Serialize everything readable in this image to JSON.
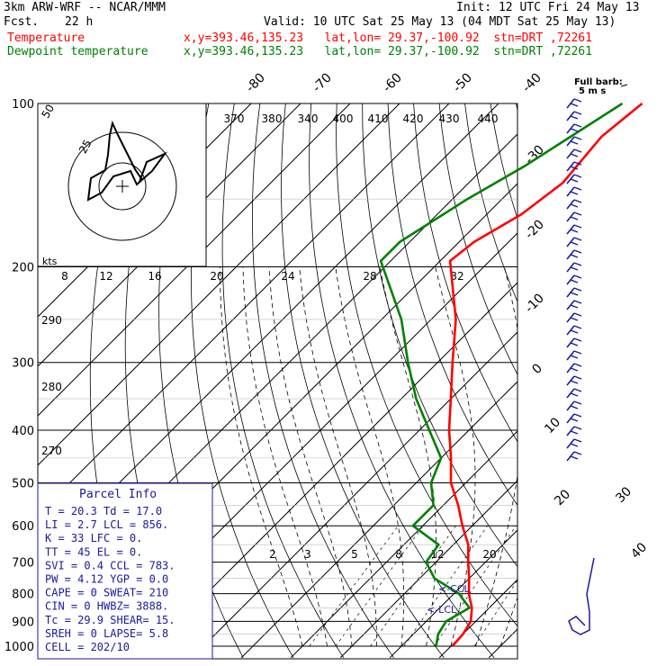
{
  "header": {
    "model": "3km ARW-WRF -- NCAR/MMM",
    "init": "Init: 12 UTC Fri 24 May 13",
    "fcst_label": "Fcst.",
    "fcst_value": "22 h",
    "valid": "Valid: 10 UTC Sat 25 May 13 (04 MDT Sat 25 May 13)",
    "temp_label": "Temperature",
    "temp_loc": "x,y=393.46,135.23   lat,lon= 29.37,-100.92  stn=DRT ,72261",
    "dew_label": "Dewpoint temperature",
    "dew_loc": "x,y=393.46,135.23   lat,lon= 29.37,-100.92  stn=DRT ,72261"
  },
  "colors": {
    "temperature": "#ff0000",
    "dewpoint": "#008000",
    "wind_barbs": "#1a1aa0",
    "hodograph": "#000000"
  },
  "chart_data": {
    "type": "skew-t log-p sounding",
    "y_axis": {
      "scale": "log",
      "ticks": [
        "100",
        "200",
        "300",
        "400",
        "500",
        "600",
        "700",
        "800",
        "900",
        "1000"
      ]
    },
    "isotherm_labels": [
      "-80",
      "-70",
      "-60",
      "-50",
      "-40",
      "-30",
      "-20",
      "-10",
      "0",
      "10",
      "20",
      "30",
      "40"
    ],
    "theta_labels": [
      "370",
      "380",
      "340",
      "400",
      "410",
      "420",
      "430",
      "440"
    ],
    "theta_left_labels": [
      "290",
      "280",
      "270"
    ],
    "mixing_ratio_labels": [
      "2",
      "3",
      "5",
      "8",
      "12",
      "20"
    ],
    "hodo_scale_labels": [
      "8",
      "12",
      "16",
      "20",
      "24",
      "28",
      "32"
    ],
    "hodo_ring_label": "25",
    "hodo_corner_label": "50",
    "kts_label": "kts",
    "full_barb": "Full barb:",
    "full_barb_value": "5 m s",
    "ccl_label": "<-CCL",
    "lcl_label": "<-LCL",
    "series": [
      {
        "name": "Temperature",
        "points": [
          [
            100,
            -51
          ],
          [
            115,
            -52.5
          ],
          [
            140,
            -51
          ],
          [
            160,
            -53
          ],
          [
            180,
            -57
          ],
          [
            195,
            -58
          ],
          [
            250,
            -45
          ],
          [
            300,
            -37
          ],
          [
            350,
            -30
          ],
          [
            400,
            -24
          ],
          [
            450,
            -18
          ],
          [
            500,
            -13
          ],
          [
            550,
            -7
          ],
          [
            600,
            -2
          ],
          [
            650,
            3
          ],
          [
            700,
            6.5
          ],
          [
            750,
            10
          ],
          [
            800,
            13
          ],
          [
            850,
            16.5
          ],
          [
            900,
            19
          ],
          [
            950,
            20
          ],
          [
            1000,
            20.3
          ]
        ]
      },
      {
        "name": "Dewpoint temperature",
        "points": [
          [
            100,
            -55
          ],
          [
            130,
            -62
          ],
          [
            150,
            -67
          ],
          [
            180,
            -72
          ],
          [
            195,
            -72
          ],
          [
            250,
            -56
          ],
          [
            300,
            -46
          ],
          [
            350,
            -37
          ],
          [
            400,
            -28
          ],
          [
            450,
            -20
          ],
          [
            500,
            -17
          ],
          [
            550,
            -12
          ],
          [
            600,
            -12
          ],
          [
            650,
            -3
          ],
          [
            700,
            -2
          ],
          [
            750,
            3
          ],
          [
            800,
            11
          ],
          [
            850,
            16
          ],
          [
            900,
            14
          ],
          [
            950,
            15
          ],
          [
            1000,
            17
          ]
        ]
      }
    ]
  },
  "parcel": {
    "title": "Parcel Info",
    "rows": [
      "T  =   20.3  Td =  17.0",
      "LI =    2.7  LCL =  856.",
      "K  =     33  LFC =    0.",
      "TT =     45  EL  =    0.",
      "SVI =   0.4  CCL =  783.",
      "PW =   4.12  YGP =   0.0",
      "CAPE =    0  SWEAT=  210",
      "CIN  =    0  HWBZ= 3888.",
      "Tc =   29.9  SHEAR=   15.",
      "SREH =    0  LAPSE=   5.8",
      "CELL = 202/10"
    ]
  }
}
